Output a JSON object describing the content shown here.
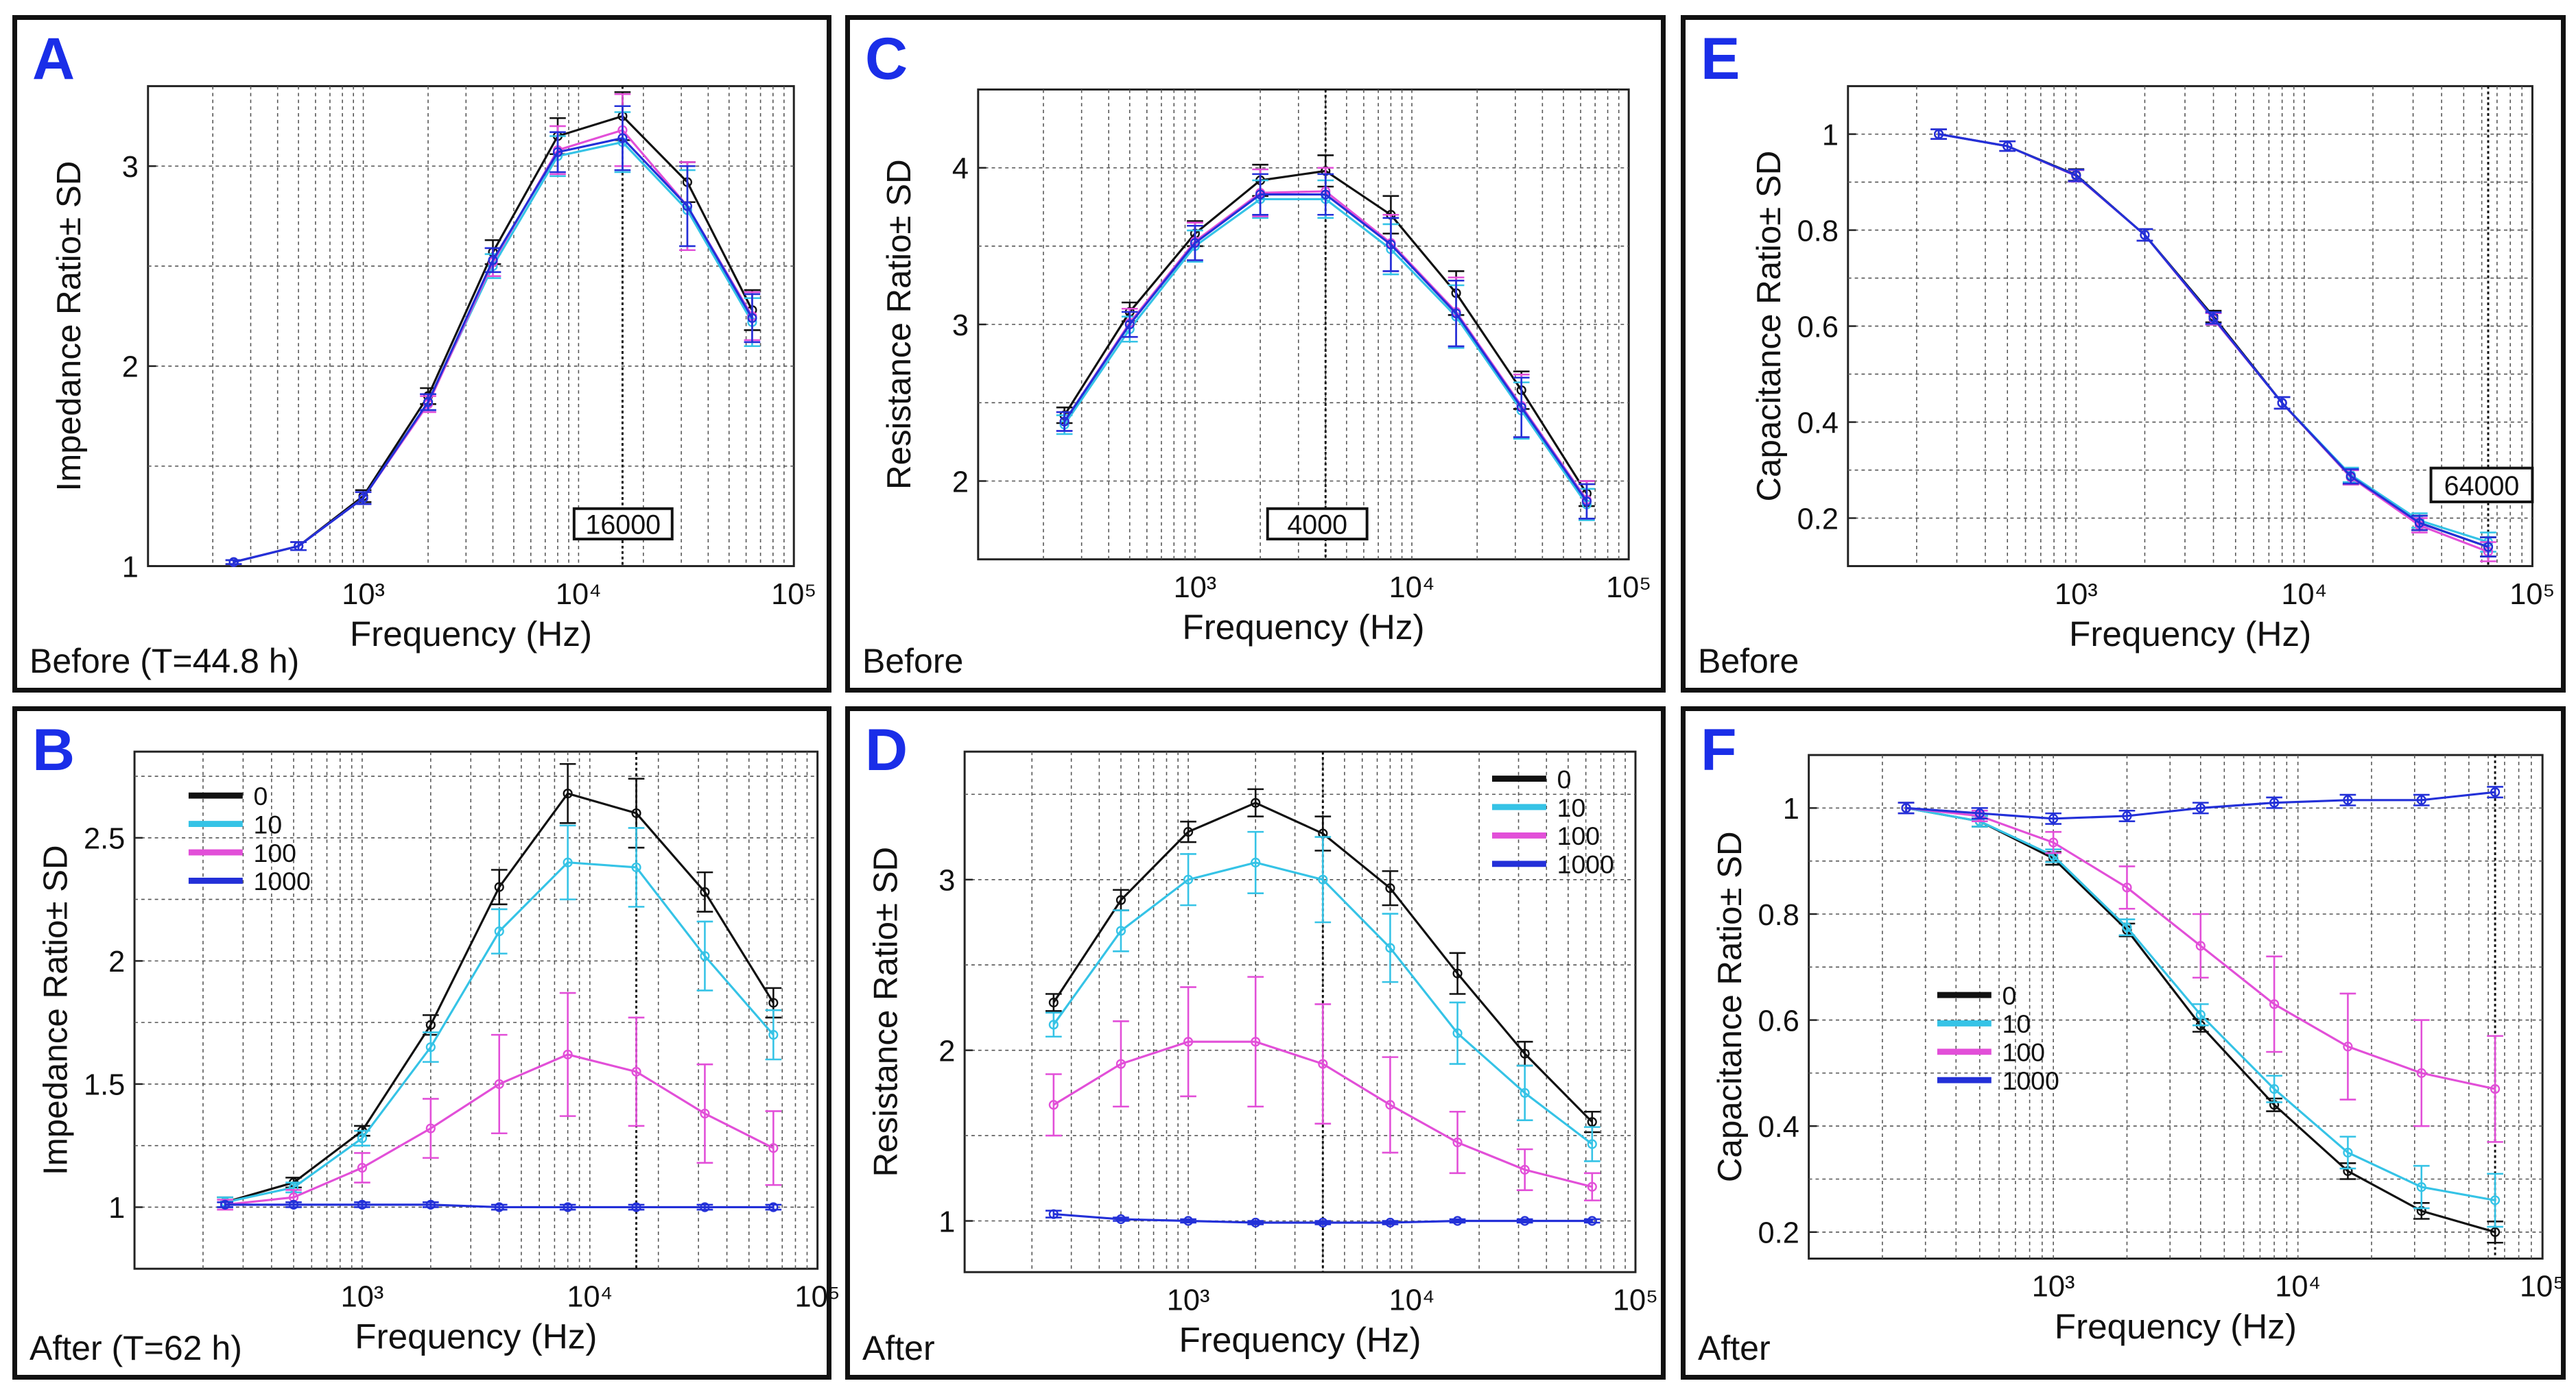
{
  "figure": {
    "series_colors": {
      "0": "#111111",
      "10": "#35c3e6",
      "100": "#e24fd8",
      "1000": "#2330d8"
    }
  },
  "panels": [
    {
      "id": "A",
      "letter": "A",
      "caption": "Before (T=44.8 h)",
      "ylabel": "Impedance Ratio± SD",
      "xlabel": "Frequency (Hz)",
      "ticks_y": [
        "1",
        "2",
        "3"
      ],
      "ticks_x": [
        "10³",
        "10⁴",
        "10⁵"
      ],
      "marker_label": "16000",
      "legend": []
    },
    {
      "id": "B",
      "letter": "B",
      "caption": "After (T=62 h)",
      "ylabel": "Impedance Ratio± SD",
      "xlabel": "Frequency (Hz)",
      "ticks_y": [
        "1",
        "1.5",
        "2",
        "2.5"
      ],
      "ticks_x": [
        "10³",
        "10⁴",
        "10⁵"
      ],
      "marker_label": "",
      "legend": [
        "0",
        "10",
        "100",
        "1000"
      ]
    },
    {
      "id": "C",
      "letter": "C",
      "caption": "Before",
      "ylabel": "Resistance Ratio± SD",
      "xlabel": "Frequency (Hz)",
      "ticks_y": [
        "2",
        "3",
        "4"
      ],
      "ticks_x": [
        "10³",
        "10⁴",
        "10⁵"
      ],
      "marker_label": "4000",
      "legend": []
    },
    {
      "id": "D",
      "letter": "D",
      "caption": "After",
      "ylabel": "Resistance Ratio± SD",
      "xlabel": "Frequency (Hz)",
      "ticks_y": [
        "1",
        "2",
        "3"
      ],
      "ticks_x": [
        "10³",
        "10⁴",
        "10⁵"
      ],
      "marker_label": "",
      "legend": [
        "0",
        "10",
        "100",
        "1000"
      ]
    },
    {
      "id": "E",
      "letter": "E",
      "caption": "Before",
      "ylabel": "Capacitance Ratio± SD",
      "xlabel": "Frequency (Hz)",
      "ticks_y": [
        "0.2",
        "0.4",
        "0.6",
        "0.8",
        "1"
      ],
      "ticks_x": [
        "10³",
        "10⁴",
        "10⁵"
      ],
      "marker_label": "64000",
      "legend": []
    },
    {
      "id": "F",
      "letter": "F",
      "caption": "After",
      "ylabel": "Capacitance Ratio± SD",
      "xlabel": "Frequency (Hz)",
      "ticks_y": [
        "0.2",
        "0.4",
        "0.6",
        "0.8",
        "1"
      ],
      "ticks_x": [
        "10³",
        "10⁴",
        "10⁵"
      ],
      "marker_label": "",
      "legend": [
        "0",
        "10",
        "100",
        "1000"
      ]
    }
  ],
  "chart_data": [
    {
      "panel": "A",
      "type": "line",
      "xlabel": "Frequency (Hz)",
      "ylabel": "Impedance Ratio± SD",
      "x_scale": "log",
      "xlim": [
        100,
        100000
      ],
      "ylim": [
        1,
        3.4
      ],
      "grid": true,
      "vline": 16000,
      "x": [
        250,
        500,
        1000,
        2000,
        4000,
        8000,
        16000,
        32000,
        64000
      ],
      "series": [
        {
          "key": "0",
          "values": [
            1.02,
            1.1,
            1.35,
            1.85,
            2.57,
            3.15,
            3.25,
            2.92,
            2.28
          ],
          "err": [
            0.01,
            0.02,
            0.03,
            0.04,
            0.06,
            0.09,
            0.12,
            0.1,
            0.1
          ]
        },
        {
          "key": "10",
          "values": [
            1.02,
            1.1,
            1.34,
            1.82,
            2.5,
            3.05,
            3.12,
            2.78,
            2.22
          ],
          "err": [
            0.01,
            0.02,
            0.03,
            0.04,
            0.06,
            0.1,
            0.15,
            0.2,
            0.12
          ]
        },
        {
          "key": "100",
          "values": [
            1.02,
            1.1,
            1.34,
            1.81,
            2.52,
            3.08,
            3.18,
            2.8,
            2.25
          ],
          "err": [
            0.01,
            0.02,
            0.03,
            0.04,
            0.07,
            0.12,
            0.18,
            0.22,
            0.12
          ]
        },
        {
          "key": "1000",
          "values": [
            1.02,
            1.1,
            1.34,
            1.82,
            2.53,
            3.07,
            3.14,
            2.8,
            2.24
          ],
          "err": [
            0.01,
            0.02,
            0.03,
            0.04,
            0.06,
            0.1,
            0.16,
            0.2,
            0.12
          ]
        }
      ]
    },
    {
      "panel": "B",
      "type": "line",
      "xlabel": "Frequency (Hz)",
      "ylabel": "Impedance Ratio± SD",
      "x_scale": "log",
      "xlim": [
        100,
        100000
      ],
      "ylim": [
        0.75,
        2.85
      ],
      "grid": true,
      "vline": 16000,
      "x": [
        250,
        500,
        1000,
        2000,
        4000,
        8000,
        16000,
        32000,
        64000
      ],
      "series": [
        {
          "key": "0",
          "values": [
            1.02,
            1.1,
            1.31,
            1.74,
            2.3,
            2.68,
            2.6,
            2.28,
            1.83
          ],
          "err": [
            0.02,
            0.02,
            0.02,
            0.04,
            0.07,
            0.12,
            0.14,
            0.08,
            0.06
          ]
        },
        {
          "key": "10",
          "values": [
            1.02,
            1.08,
            1.28,
            1.65,
            2.12,
            2.4,
            2.38,
            2.02,
            1.7
          ],
          "err": [
            0.02,
            0.02,
            0.03,
            0.06,
            0.09,
            0.15,
            0.16,
            0.14,
            0.1
          ]
        },
        {
          "key": "100",
          "values": [
            1.01,
            1.04,
            1.16,
            1.32,
            1.5,
            1.62,
            1.55,
            1.38,
            1.24
          ],
          "err": [
            0.02,
            0.03,
            0.06,
            0.12,
            0.2,
            0.25,
            0.22,
            0.2,
            0.15
          ]
        },
        {
          "key": "1000",
          "values": [
            1.01,
            1.01,
            1.01,
            1.01,
            1.0,
            1.0,
            1.0,
            1.0,
            1.0
          ],
          "err": [
            0.01,
            0.01,
            0.01,
            0.01,
            0.01,
            0.01,
            0.01,
            0.01,
            0.01
          ]
        }
      ]
    },
    {
      "panel": "C",
      "type": "line",
      "xlabel": "Frequency (Hz)",
      "ylabel": "Resistance Ratio± SD",
      "x_scale": "log",
      "xlim": [
        100,
        100000
      ],
      "ylim": [
        1.5,
        4.5
      ],
      "grid": true,
      "vline": 4000,
      "x": [
        250,
        500,
        1000,
        2000,
        4000,
        8000,
        16000,
        32000,
        64000
      ],
      "series": [
        {
          "key": "0",
          "values": [
            2.42,
            3.08,
            3.58,
            3.92,
            3.98,
            3.7,
            3.2,
            2.58,
            1.92
          ],
          "err": [
            0.05,
            0.06,
            0.08,
            0.1,
            0.1,
            0.12,
            0.14,
            0.12,
            0.08
          ]
        },
        {
          "key": "10",
          "values": [
            2.36,
            2.97,
            3.5,
            3.8,
            3.8,
            3.48,
            3.05,
            2.45,
            1.85
          ],
          "err": [
            0.06,
            0.08,
            0.1,
            0.12,
            0.12,
            0.16,
            0.2,
            0.18,
            0.1
          ]
        },
        {
          "key": "100",
          "values": [
            2.38,
            3.01,
            3.53,
            3.84,
            3.85,
            3.52,
            3.08,
            2.48,
            1.88
          ],
          "err": [
            0.06,
            0.09,
            0.12,
            0.15,
            0.15,
            0.18,
            0.22,
            0.2,
            0.12
          ]
        },
        {
          "key": "1000",
          "values": [
            2.38,
            3.0,
            3.52,
            3.83,
            3.83,
            3.51,
            3.07,
            2.47,
            1.87
          ],
          "err": [
            0.06,
            0.08,
            0.11,
            0.13,
            0.13,
            0.17,
            0.21,
            0.19,
            0.11
          ]
        }
      ]
    },
    {
      "panel": "D",
      "type": "line",
      "xlabel": "Frequency (Hz)",
      "ylabel": "Resistance Ratio± SD",
      "x_scale": "log",
      "xlim": [
        100,
        100000
      ],
      "ylim": [
        0.7,
        3.75
      ],
      "grid": true,
      "vline": 4000,
      "x": [
        250,
        500,
        1000,
        2000,
        4000,
        8000,
        16000,
        32000,
        64000
      ],
      "series": [
        {
          "key": "0",
          "values": [
            2.28,
            2.88,
            3.28,
            3.45,
            3.27,
            2.95,
            2.45,
            1.98,
            1.58
          ],
          "err": [
            0.05,
            0.06,
            0.06,
            0.08,
            0.1,
            0.1,
            0.12,
            0.07,
            0.06
          ]
        },
        {
          "key": "10",
          "values": [
            2.15,
            2.7,
            3.0,
            3.1,
            3.0,
            2.6,
            2.1,
            1.75,
            1.45
          ],
          "err": [
            0.07,
            0.12,
            0.15,
            0.18,
            0.25,
            0.2,
            0.18,
            0.16,
            0.1
          ]
        },
        {
          "key": "100",
          "values": [
            1.68,
            1.92,
            2.05,
            2.05,
            1.92,
            1.68,
            1.46,
            1.3,
            1.2
          ],
          "err": [
            0.18,
            0.25,
            0.32,
            0.38,
            0.35,
            0.28,
            0.18,
            0.12,
            0.08
          ]
        },
        {
          "key": "1000",
          "values": [
            1.04,
            1.01,
            1.0,
            0.99,
            0.99,
            0.99,
            1.0,
            1.0,
            1.0
          ],
          "err": [
            0.02,
            0.01,
            0.01,
            0.01,
            0.01,
            0.01,
            0.01,
            0.01,
            0.01
          ]
        }
      ]
    },
    {
      "panel": "E",
      "type": "line",
      "xlabel": "Frequency (Hz)",
      "ylabel": "Capacitance Ratio± SD",
      "x_scale": "log",
      "xlim": [
        100,
        100000
      ],
      "ylim": [
        0.1,
        1.1
      ],
      "grid": true,
      "vline": 64000,
      "x": [
        250,
        500,
        1000,
        2000,
        4000,
        8000,
        16000,
        32000,
        64000
      ],
      "series": [
        {
          "key": "0",
          "values": [
            1.0,
            0.975,
            0.915,
            0.79,
            0.62,
            0.44,
            0.285,
            0.19,
            0.14
          ],
          "err": [
            0.01,
            0.01,
            0.012,
            0.012,
            0.012,
            0.012,
            0.015,
            0.015,
            0.02
          ]
        },
        {
          "key": "10",
          "values": [
            1.0,
            0.975,
            0.913,
            0.79,
            0.615,
            0.44,
            0.29,
            0.195,
            0.15
          ],
          "err": [
            0.01,
            0.01,
            0.012,
            0.012,
            0.012,
            0.012,
            0.015,
            0.015,
            0.02
          ]
        },
        {
          "key": "100",
          "values": [
            1.0,
            0.975,
            0.913,
            0.79,
            0.615,
            0.44,
            0.285,
            0.185,
            0.13
          ],
          "err": [
            0.01,
            0.01,
            0.012,
            0.012,
            0.012,
            0.012,
            0.015,
            0.015,
            0.02
          ]
        },
        {
          "key": "1000",
          "values": [
            1.0,
            0.975,
            0.914,
            0.79,
            0.617,
            0.44,
            0.287,
            0.19,
            0.14
          ],
          "err": [
            0.01,
            0.01,
            0.012,
            0.012,
            0.012,
            0.012,
            0.015,
            0.015,
            0.02
          ]
        }
      ]
    },
    {
      "panel": "F",
      "type": "line",
      "xlabel": "Frequency (Hz)",
      "ylabel": "Capacitance Ratio± SD",
      "x_scale": "log",
      "xlim": [
        100,
        100000
      ],
      "ylim": [
        0.15,
        1.1
      ],
      "grid": true,
      "vline": 64000,
      "x": [
        250,
        500,
        1000,
        2000,
        4000,
        8000,
        16000,
        32000,
        64000
      ],
      "series": [
        {
          "key": "0",
          "values": [
            1.0,
            0.975,
            0.905,
            0.77,
            0.59,
            0.44,
            0.315,
            0.24,
            0.2
          ],
          "err": [
            0.01,
            0.01,
            0.012,
            0.012,
            0.012,
            0.012,
            0.015,
            0.015,
            0.02
          ]
        },
        {
          "key": "10",
          "values": [
            1.0,
            0.975,
            0.91,
            0.775,
            0.61,
            0.47,
            0.35,
            0.285,
            0.26
          ],
          "err": [
            0.01,
            0.01,
            0.012,
            0.015,
            0.02,
            0.025,
            0.03,
            0.04,
            0.05
          ]
        },
        {
          "key": "100",
          "values": [
            1.0,
            0.985,
            0.935,
            0.85,
            0.74,
            0.63,
            0.55,
            0.5,
            0.47
          ],
          "err": [
            0.01,
            0.01,
            0.02,
            0.04,
            0.06,
            0.09,
            0.1,
            0.1,
            0.1
          ]
        },
        {
          "key": "1000",
          "values": [
            1.0,
            0.99,
            0.98,
            0.985,
            1.0,
            1.01,
            1.015,
            1.015,
            1.03
          ],
          "err": [
            0.01,
            0.01,
            0.01,
            0.01,
            0.01,
            0.01,
            0.01,
            0.01,
            0.01
          ]
        }
      ]
    }
  ]
}
